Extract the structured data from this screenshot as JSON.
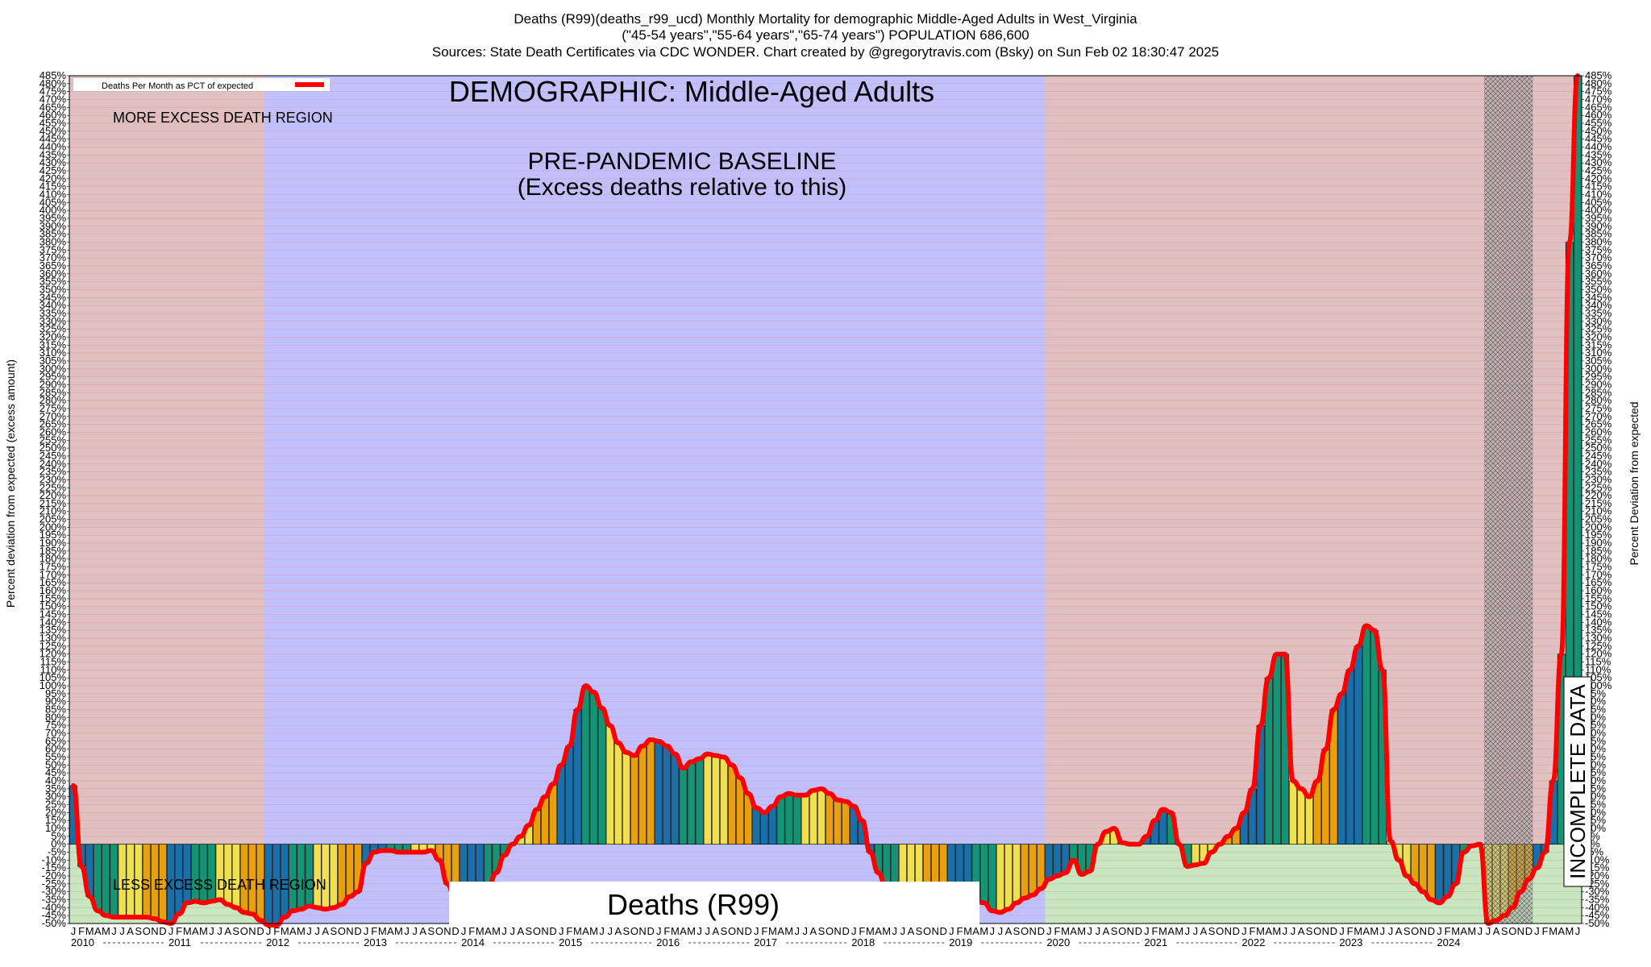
{
  "chart_data": {
    "type": "bar",
    "title_lines": [
      "Deaths (R99)(deaths_r99_ucd) Monthly Mortality for demographic Middle-Aged Adults in West_Virginia",
      "(\"45-54 years\",\"55-64 years\",\"65-74 years\") POPULATION 686,600",
      "Sources: State Death Certificates via CDC WONDER.              Chart created by @gregorytravis.com (Bsky) on Sun Feb 02 18:30:47 2025"
    ],
    "ylabel_left": "Percent deviation from expected (excess amount)",
    "ylabel_right": "Percent Deviation from expected",
    "legend_label": "Deaths Per Month as PCT of expected",
    "legend_position": "top-left",
    "demographic_label": "DEMOGRAPHIC: Middle-Aged Adults",
    "baseline_label_1": "PRE-PANDEMIC BASELINE",
    "baseline_label_2": "(Excess deaths relative to this)",
    "more_label": "MORE EXCESS DEATH REGION",
    "less_label": "LESS EXCESS DEATH REGION",
    "cause_label": "Deaths (R99)",
    "incomplete_label": "INCOMPLETE DATA",
    "ylim": [
      -50,
      485
    ],
    "ytick_step": 5,
    "grid": true,
    "month_letters": [
      "J",
      "F",
      "M",
      "A",
      "M",
      "J",
      "J",
      "A",
      "S",
      "O",
      "N",
      "D"
    ],
    "year_labels": [
      "2010",
      "2011",
      "2012",
      "2013",
      "2014",
      "2015",
      "2016",
      "2017",
      "2018",
      "2019",
      "2020",
      "2021",
      "2022",
      "2023",
      "2024"
    ],
    "start": "2010-01",
    "baseline_period": [
      "2012-01",
      "2019-12"
    ],
    "incomplete_period": [
      "2024-07",
      "2024-12"
    ],
    "colors": {
      "line": "#ff0000",
      "excess_region": "#e0c0c0",
      "baseline_region": "#c0c0ff",
      "deficit_region": "#c8e6c0",
      "bars": [
        "#1a6fa8",
        "#149474",
        "#f0e050",
        "#e8a010"
      ]
    },
    "series": [
      {
        "name": "Deaths Per Month as PCT of expected",
        "values": [
          37,
          -14,
          -33,
          -42,
          -45,
          -46,
          -46,
          -46,
          -46,
          -46,
          -47,
          -49,
          -50,
          -44,
          -37,
          -36,
          -37,
          -36,
          -35,
          -38,
          -40,
          -43,
          -44,
          -48,
          -51,
          -51,
          -46,
          -42,
          -41,
          -39,
          -40,
          -41,
          -40,
          -38,
          -33,
          -30,
          -12,
          -5,
          -4,
          -4,
          -5,
          -5,
          -5,
          -5,
          -4,
          -10,
          -25,
          -36,
          -37,
          -35,
          -33,
          -28,
          -18,
          -7,
          0,
          5,
          12,
          22,
          30,
          38,
          50,
          62,
          85,
          100,
          96,
          86,
          75,
          64,
          58,
          56,
          62,
          66,
          65,
          62,
          57,
          48,
          52,
          54,
          57,
          56,
          55,
          50,
          42,
          32,
          23,
          20,
          24,
          30,
          32,
          31,
          31,
          34,
          35,
          32,
          28,
          27,
          24,
          15,
          -5,
          -18,
          -28,
          -34,
          -37,
          -37,
          -37,
          -37,
          -37,
          -37,
          -35,
          -34,
          -35,
          -36,
          -37,
          -42,
          -43,
          -41,
          -37,
          -34,
          -32,
          -28,
          -22,
          -20,
          -18,
          -10,
          -19,
          -17,
          0,
          8,
          10,
          1,
          0,
          0,
          5,
          15,
          22,
          20,
          0,
          -14,
          -13,
          -12,
          -5,
          0,
          5,
          10,
          20,
          35,
          75,
          105,
          120,
          120,
          40,
          35,
          30,
          40,
          60,
          85,
          95,
          110,
          125,
          138,
          135,
          110,
          2,
          -10,
          -20,
          -25,
          -30,
          -35,
          -37,
          -33,
          -25,
          -5,
          -1,
          0,
          -50,
          -48,
          -45,
          -40,
          -30,
          -22,
          -15,
          -5,
          40,
          120,
          380,
          485
        ]
      }
    ]
  }
}
